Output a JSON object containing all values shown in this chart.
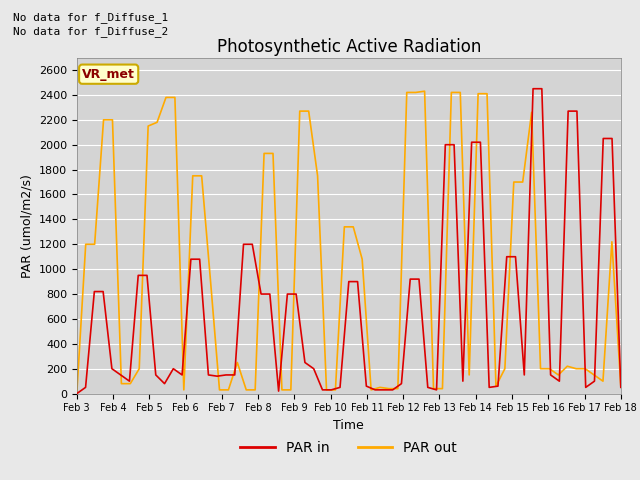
{
  "title": "Photosynthetic Active Radiation",
  "xlabel": "Time",
  "ylabel": "PAR (umol/m2/s)",
  "fig_facecolor": "#e8e8e8",
  "plot_bg_color": "#d4d4d4",
  "annotations": [
    "No data for f_Diffuse_1",
    "No data for f_Diffuse_2"
  ],
  "legend_label": "VR_met",
  "legend_entries": [
    "PAR in",
    "PAR out"
  ],
  "par_in_color": "#dd0000",
  "par_out_color": "#ffaa00",
  "ylim": [
    0,
    2700
  ],
  "yticks": [
    0,
    200,
    400,
    600,
    800,
    1000,
    1200,
    1400,
    1600,
    1800,
    2000,
    2200,
    2400,
    2600
  ],
  "xtick_labels": [
    "Feb 3",
    "Feb 4",
    "Feb 5",
    "Feb 6",
    "Feb 7",
    "Feb 8",
    "Feb 9",
    "Feb 10",
    "Feb 11",
    "Feb 12",
    "Feb 13",
    "Feb 14",
    "Feb 15",
    "Feb 16",
    "Feb 17",
    "Feb 18"
  ],
  "par_in": [
    0,
    50,
    820,
    820,
    200,
    150,
    100,
    950,
    950,
    150,
    80,
    200,
    150,
    1080,
    1080,
    150,
    140,
    150,
    150,
    1200,
    1200,
    800,
    800,
    20,
    800,
    800,
    250,
    200,
    30,
    30,
    50,
    900,
    900,
    60,
    30,
    30,
    30,
    80,
    920,
    920,
    50,
    30,
    2000,
    2000,
    100,
    2020,
    2020,
    50,
    60,
    1100,
    1100,
    150,
    2450,
    2450,
    150,
    100,
    2270,
    2270,
    50,
    100,
    2050,
    2050,
    50
  ],
  "par_out": [
    0,
    1200,
    1200,
    2200,
    2200,
    80,
    80,
    200,
    2150,
    2180,
    2380,
    2380,
    30,
    1750,
    1750,
    900,
    30,
    30,
    250,
    30,
    30,
    1930,
    1930,
    30,
    30,
    2270,
    2270,
    1750,
    30,
    30,
    1340,
    1340,
    1080,
    30,
    50,
    40,
    40,
    2420,
    2420,
    2430,
    40,
    40,
    2420,
    2420,
    150,
    2410,
    2410,
    60,
    200,
    1700,
    1700,
    2260,
    200,
    200,
    150,
    220,
    200,
    200,
    150,
    100,
    1220,
    60
  ]
}
